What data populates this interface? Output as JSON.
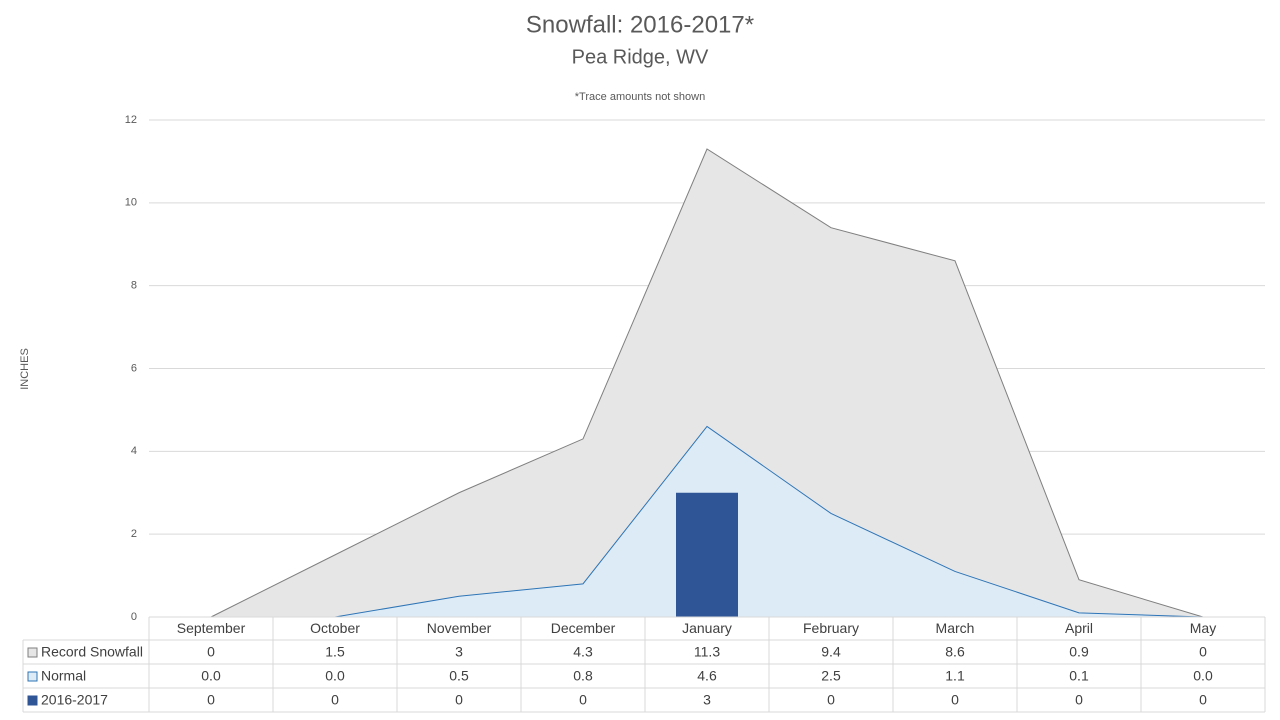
{
  "chart_data": {
    "type": "area-table",
    "title": "Snowfall: 2016-2017*",
    "subtitle": "Pea Ridge, WV",
    "annotation": "*Trace amounts not shown",
    "y_label": "INCHES",
    "categories": [
      "September",
      "October",
      "November",
      "December",
      "January",
      "February",
      "March",
      "April",
      "May"
    ],
    "ylim": [
      0,
      12
    ],
    "yticks": [
      0,
      2,
      4,
      6,
      8,
      10,
      12
    ],
    "grid": true,
    "series": [
      {
        "name": "Record Snowfall",
        "type": "area",
        "color": "#e7e6e6",
        "line_color": "#7f7f7f",
        "values": [
          0,
          1.5,
          3,
          4.3,
          11.3,
          9.4,
          8.6,
          0.9,
          0
        ]
      },
      {
        "name": "Normal",
        "type": "area",
        "color": "#ddebf7",
        "line_color": "#2e75b6",
        "values": [
          0,
          0,
          0.5,
          0.8,
          4.6,
          2.5,
          1.1,
          0.1,
          0
        ],
        "value_labels": [
          "0.0",
          "0.0",
          "0.5",
          "0.8",
          "4.6",
          "2.5",
          "1.1",
          "0.1",
          "0.0"
        ]
      },
      {
        "name": "2016-2017",
        "type": "bar",
        "color": "#2f5597",
        "values": [
          0,
          0,
          0,
          0,
          3,
          0,
          0,
          0,
          0
        ]
      }
    ]
  }
}
